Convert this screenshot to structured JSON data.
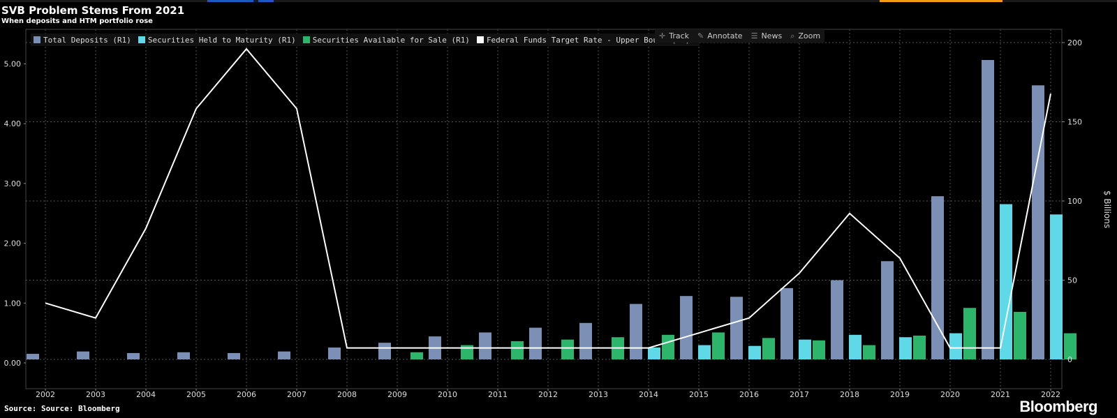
{
  "header": {
    "title": "SVB Problem Stems From 2021",
    "subtitle": "When deposits and HTM portfolio rose"
  },
  "legend": {
    "items": [
      {
        "label": "Total Deposits (R1)",
        "color": "#7b90b4"
      },
      {
        "label": "Securities Held to Maturity (R1)",
        "color": "#5fd9e8"
      },
      {
        "label": "Securities Available for Sale (R1)",
        "color": "#2db56b"
      },
      {
        "label": "Federal Funds Target Rate - Upper Bound (L1)",
        "color": "#ffffff"
      }
    ]
  },
  "toolbar": {
    "track_label": "Track",
    "annotate_label": "Annotate",
    "news_label": "News",
    "zoom_label": "Zoom",
    "track_icon": "crosshair-icon",
    "annotate_icon": "pencil-icon",
    "news_icon": "news-icon",
    "zoom_icon": "magnifier-icon"
  },
  "footer": {
    "source": "Source: Source: Bloomberg",
    "brand": "Bloomberg"
  },
  "chart_data": {
    "type": "bar",
    "categories": [
      "2002",
      "2003",
      "2004",
      "2005",
      "2006",
      "2007",
      "2008",
      "2009",
      "2010",
      "2011",
      "2012",
      "2013",
      "2014",
      "2015",
      "2016",
      "2017",
      "2018",
      "2019",
      "2020",
      "2021",
      "2022"
    ],
    "series": [
      {
        "name": "Total Deposits (R1)",
        "axis": "right",
        "type": "bar",
        "color": "#7b90b4",
        "values": [
          3.5,
          5,
          4,
          4.5,
          4,
          5,
          7.5,
          10.5,
          14.5,
          17,
          20,
          23,
          35,
          40,
          39.5,
          45,
          50,
          62,
          103,
          189,
          173
        ]
      },
      {
        "name": "Securities Held to Maturity (R1)",
        "axis": "right",
        "type": "bar",
        "color": "#5fd9e8",
        "values": [
          null,
          null,
          null,
          null,
          null,
          null,
          null,
          null,
          null,
          null,
          null,
          null,
          7.5,
          9,
          8.5,
          12.5,
          15.5,
          14,
          16.5,
          98,
          91.5
        ]
      },
      {
        "name": "Securities Available for Sale (R1)",
        "axis": "right",
        "type": "bar",
        "color": "#2db56b",
        "values": [
          null,
          null,
          null,
          null,
          null,
          null,
          null,
          4.5,
          9,
          11.5,
          12.5,
          14,
          15.5,
          17,
          13.5,
          12,
          9,
          15,
          32.5,
          30,
          16.5
        ]
      },
      {
        "name": "Federal Funds Target Rate - Upper Bound (L1)",
        "axis": "left",
        "type": "line",
        "color": "#ffffff",
        "values": [
          1.0,
          0.75,
          2.25,
          4.25,
          5.25,
          4.25,
          0.25,
          0.25,
          0.25,
          0.25,
          0.25,
          0.25,
          0.25,
          0.5,
          0.75,
          1.5,
          2.5,
          1.75,
          0.25,
          0.25,
          4.5
        ]
      }
    ],
    "y_left": {
      "ylim": [
        -0.25,
        5.5
      ],
      "ticks": [
        "0.00",
        "1.00",
        "2.00",
        "3.00",
        "4.00",
        "5.00"
      ],
      "tick_values": [
        0,
        1,
        2,
        3,
        4,
        5
      ]
    },
    "y_right": {
      "ylabel": "$ Billions",
      "ylim": [
        -20,
        210
      ],
      "ticks": [
        "0",
        "50",
        "100",
        "150",
        "200"
      ],
      "tick_values": [
        0,
        50,
        100,
        150,
        200
      ]
    },
    "grid": true,
    "legend_position": "top-left"
  }
}
